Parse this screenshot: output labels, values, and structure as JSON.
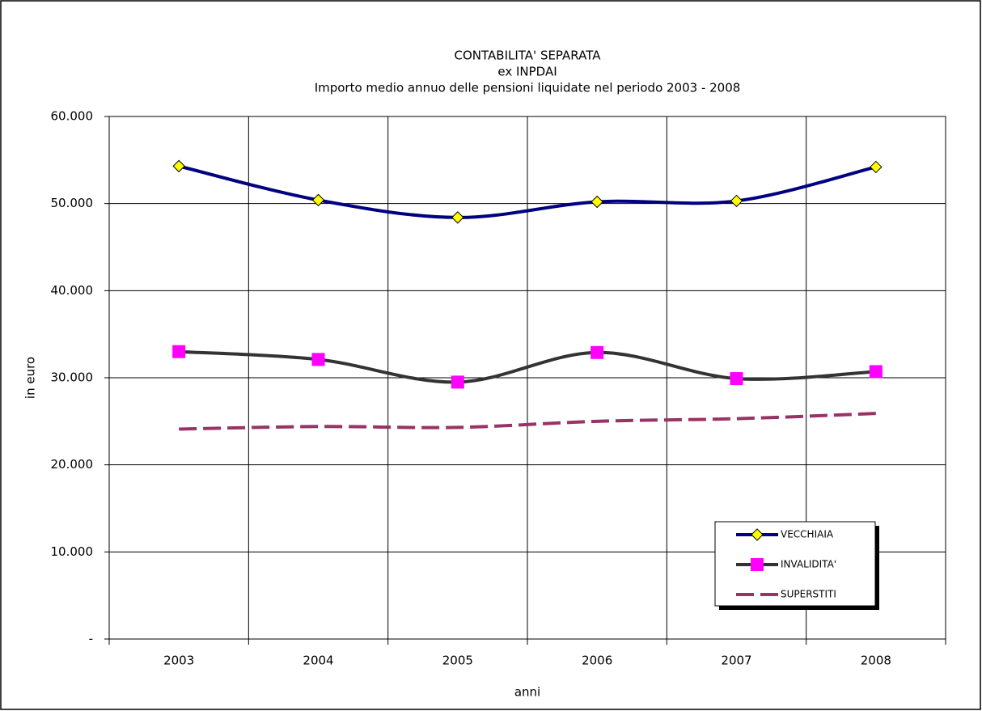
{
  "chart_data": {
    "type": "line",
    "title": [
      "CONTABILITA' SEPARATA",
      "ex INPDAI",
      "Importo medio annuo delle pensioni liquidate nel periodo 2003 - 2008"
    ],
    "x_label": "anni",
    "y_label": "in euro",
    "categories": [
      "2003",
      "2004",
      "2005",
      "2006",
      "2007",
      "2008"
    ],
    "series": [
      {
        "name": "VECCHIAIA",
        "color": "#000080",
        "marker": "diamond",
        "marker_color": "#ffff00",
        "values": [
          54300,
          50400,
          48400,
          50200,
          50300,
          54200
        ]
      },
      {
        "name": "INVALIDITA'",
        "color": "#333333",
        "marker": "square",
        "marker_color": "#ff00ff",
        "values": [
          33000,
          32100,
          29500,
          32900,
          29900,
          30700
        ]
      },
      {
        "name": "SUPERSTITI",
        "color": "#993366",
        "dashed": true,
        "values": [
          24100,
          24400,
          24300,
          25000,
          25300,
          25900
        ]
      }
    ],
    "ylim": [
      0,
      60000
    ],
    "yticks": [
      {
        "value": 0,
        "label": "-"
      },
      {
        "value": 10000,
        "label": "10.000"
      },
      {
        "value": 20000,
        "label": "20.000"
      },
      {
        "value": 30000,
        "label": "30.000"
      },
      {
        "value": 40000,
        "label": "40.000"
      },
      {
        "value": 50000,
        "label": "50.000"
      },
      {
        "value": 60000,
        "label": "60.000"
      }
    ],
    "grid": true,
    "smooth": true,
    "legend": "lower right"
  }
}
